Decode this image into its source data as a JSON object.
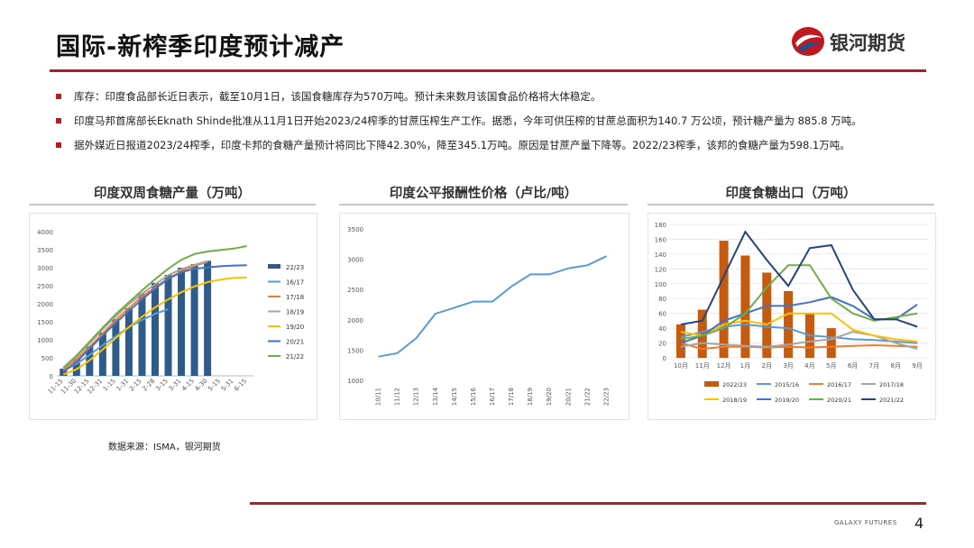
{
  "page": {
    "title": "国际-新榨季印度预计减产",
    "logo_text": "银河期货",
    "bullets": [
      "库存：印度食品部长近日表示，截至10月1日，该国食糖库存为570万吨。预计未来数月该国食品价格将大体稳定。",
      "印度马邦首席部长Eknath Shinde批准从11月1日开始2023/24榨季的甘蔗压榨生产工作。据悉，今年可供压榨的甘蔗总面积为140.7 万公顷，预计糖产量为 885.8 万吨。",
      "据外媒近日报道2023/24榨季，印度卡邦的食糖产量预计将同比下降42.30%，降至345.1万吨。原因是甘蔗产量下降等。2022/23榨季，该邦的食糖产量为598.1万吨。"
    ],
    "source": "数据来源：ISMA，银河期货",
    "footer_brand": "GALAXY FUTURES",
    "page_number": "4",
    "accent_color": "#b01e23"
  },
  "chart_data": [
    {
      "type": "bar",
      "title": "印度双周食糖产量（万吨）",
      "categories": [
        "11-15",
        "11-30",
        "12-15",
        "12-31",
        "1-15",
        "1-31",
        "2-15",
        "2-28",
        "3-15",
        "3-31",
        "4-15",
        "4-30",
        "5-15",
        "5-31",
        "6-15"
      ],
      "yticks": [
        0,
        500,
        1000,
        1500,
        2000,
        2500,
        3000,
        3500,
        4000
      ],
      "ylim": [
        0,
        4000
      ],
      "bar_series": {
        "name": "22/23",
        "color": "#2e5c8a",
        "values": [
          200,
          470,
          820,
          1200,
          1570,
          1880,
          2280,
          2580,
          2800,
          3000,
          3100,
          3190,
          null,
          null,
          null
        ]
      },
      "series": [
        {
          "name": "16/17",
          "color": "#5b9bd5",
          "values": [
            150,
            330,
            580,
            850,
            1100,
            1350,
            1550,
            1720,
            1850,
            null,
            null,
            null,
            null,
            null,
            null
          ]
        },
        {
          "name": "17/18",
          "color": "#ed7d31",
          "values": [
            180,
            450,
            800,
            1180,
            1550,
            1880,
            2200,
            2450,
            2700,
            2900,
            3050,
            3160,
            null,
            null,
            null
          ]
        },
        {
          "name": "18/19",
          "color": "#a5a5a5",
          "values": [
            220,
            520,
            900,
            1290,
            1650,
            1990,
            2280,
            2540,
            2790,
            2960,
            3080,
            3180,
            null,
            null,
            null
          ]
        },
        {
          "name": "19/20",
          "color": "#ffc000",
          "values": [
            40,
            180,
            430,
            730,
            1050,
            1350,
            1640,
            1900,
            2120,
            2320,
            2480,
            2600,
            2670,
            2720,
            2730
          ]
        },
        {
          "name": "20/21",
          "color": "#4472c4",
          "values": [
            110,
            380,
            750,
            1120,
            1470,
            1800,
            2120,
            2420,
            2690,
            2870,
            2970,
            3010,
            3040,
            3060,
            3070
          ]
        },
        {
          "name": "21/22",
          "color": "#70ad47",
          "values": [
            230,
            560,
            950,
            1340,
            1710,
            2040,
            2370,
            2680,
            2970,
            3220,
            3380,
            3450,
            3490,
            3530,
            3600
          ]
        }
      ]
    },
    {
      "type": "line",
      "title": "印度公平报酬性价格（卢比/吨）",
      "categories": [
        "10/11",
        "11/12",
        "12/13",
        "13/14",
        "14/15",
        "15/16",
        "16/17",
        "17/18",
        "18/19",
        "19/20",
        "20/21",
        "21/22",
        "22/23"
      ],
      "yticks": [
        1000,
        1500,
        2000,
        2500,
        3000,
        3500
      ],
      "ylim": [
        1000,
        3500
      ],
      "series": [
        {
          "color": "#5b9bd5",
          "values": [
            1391,
            1450,
            1700,
            2100,
            2200,
            2300,
            2300,
            2550,
            2750,
            2750,
            2850,
            2900,
            3050
          ]
        }
      ]
    },
    {
      "type": "bar",
      "title": "印度食糖出口（万吨）",
      "categories": [
        "10月",
        "11月",
        "12月",
        "1月",
        "2月",
        "3月",
        "4月",
        "5月",
        "6月",
        "7月",
        "8月",
        "9月"
      ],
      "yticks": [
        0,
        20,
        40,
        60,
        80,
        100,
        120,
        140,
        160,
        180
      ],
      "ylim": [
        0,
        180
      ],
      "bar_series": {
        "name": "2022/23",
        "color": "#c55a11",
        "values": [
          45,
          65,
          158,
          138,
          115,
          90,
          60,
          40,
          null,
          null,
          null,
          null
        ]
      },
      "series": [
        {
          "name": "2015/16",
          "color": "#5b9bd5",
          "values": [
            28,
            35,
            42,
            45,
            42,
            40,
            30,
            28,
            25,
            24,
            22,
            20
          ]
        },
        {
          "name": "2016/17",
          "color": "#ed7d31",
          "values": [
            20,
            12,
            15,
            15,
            14,
            15,
            14,
            15,
            16,
            17,
            16,
            15
          ]
        },
        {
          "name": "2017/18",
          "color": "#a5a5a5",
          "values": [
            15,
            20,
            18,
            16,
            15,
            18,
            22,
            25,
            35,
            30,
            20,
            12
          ]
        },
        {
          "name": "2018/19",
          "color": "#ffc000",
          "values": [
            35,
            30,
            45,
            50,
            45,
            60,
            60,
            60,
            38,
            30,
            25,
            22
          ]
        },
        {
          "name": "2019/20",
          "color": "#4472c4",
          "values": [
            20,
            30,
            50,
            60,
            70,
            70,
            75,
            82,
            70,
            52,
            52,
            72
          ]
        },
        {
          "name": "2020/21",
          "color": "#70ad47",
          "values": [
            25,
            30,
            40,
            60,
            95,
            125,
            125,
            80,
            60,
            50,
            55,
            60
          ]
        },
        {
          "name": "2021/22",
          "color": "#264478",
          "values": [
            45,
            50,
            110,
            170,
            132,
            97,
            148,
            152,
            92,
            52,
            52,
            42
          ]
        }
      ]
    }
  ]
}
